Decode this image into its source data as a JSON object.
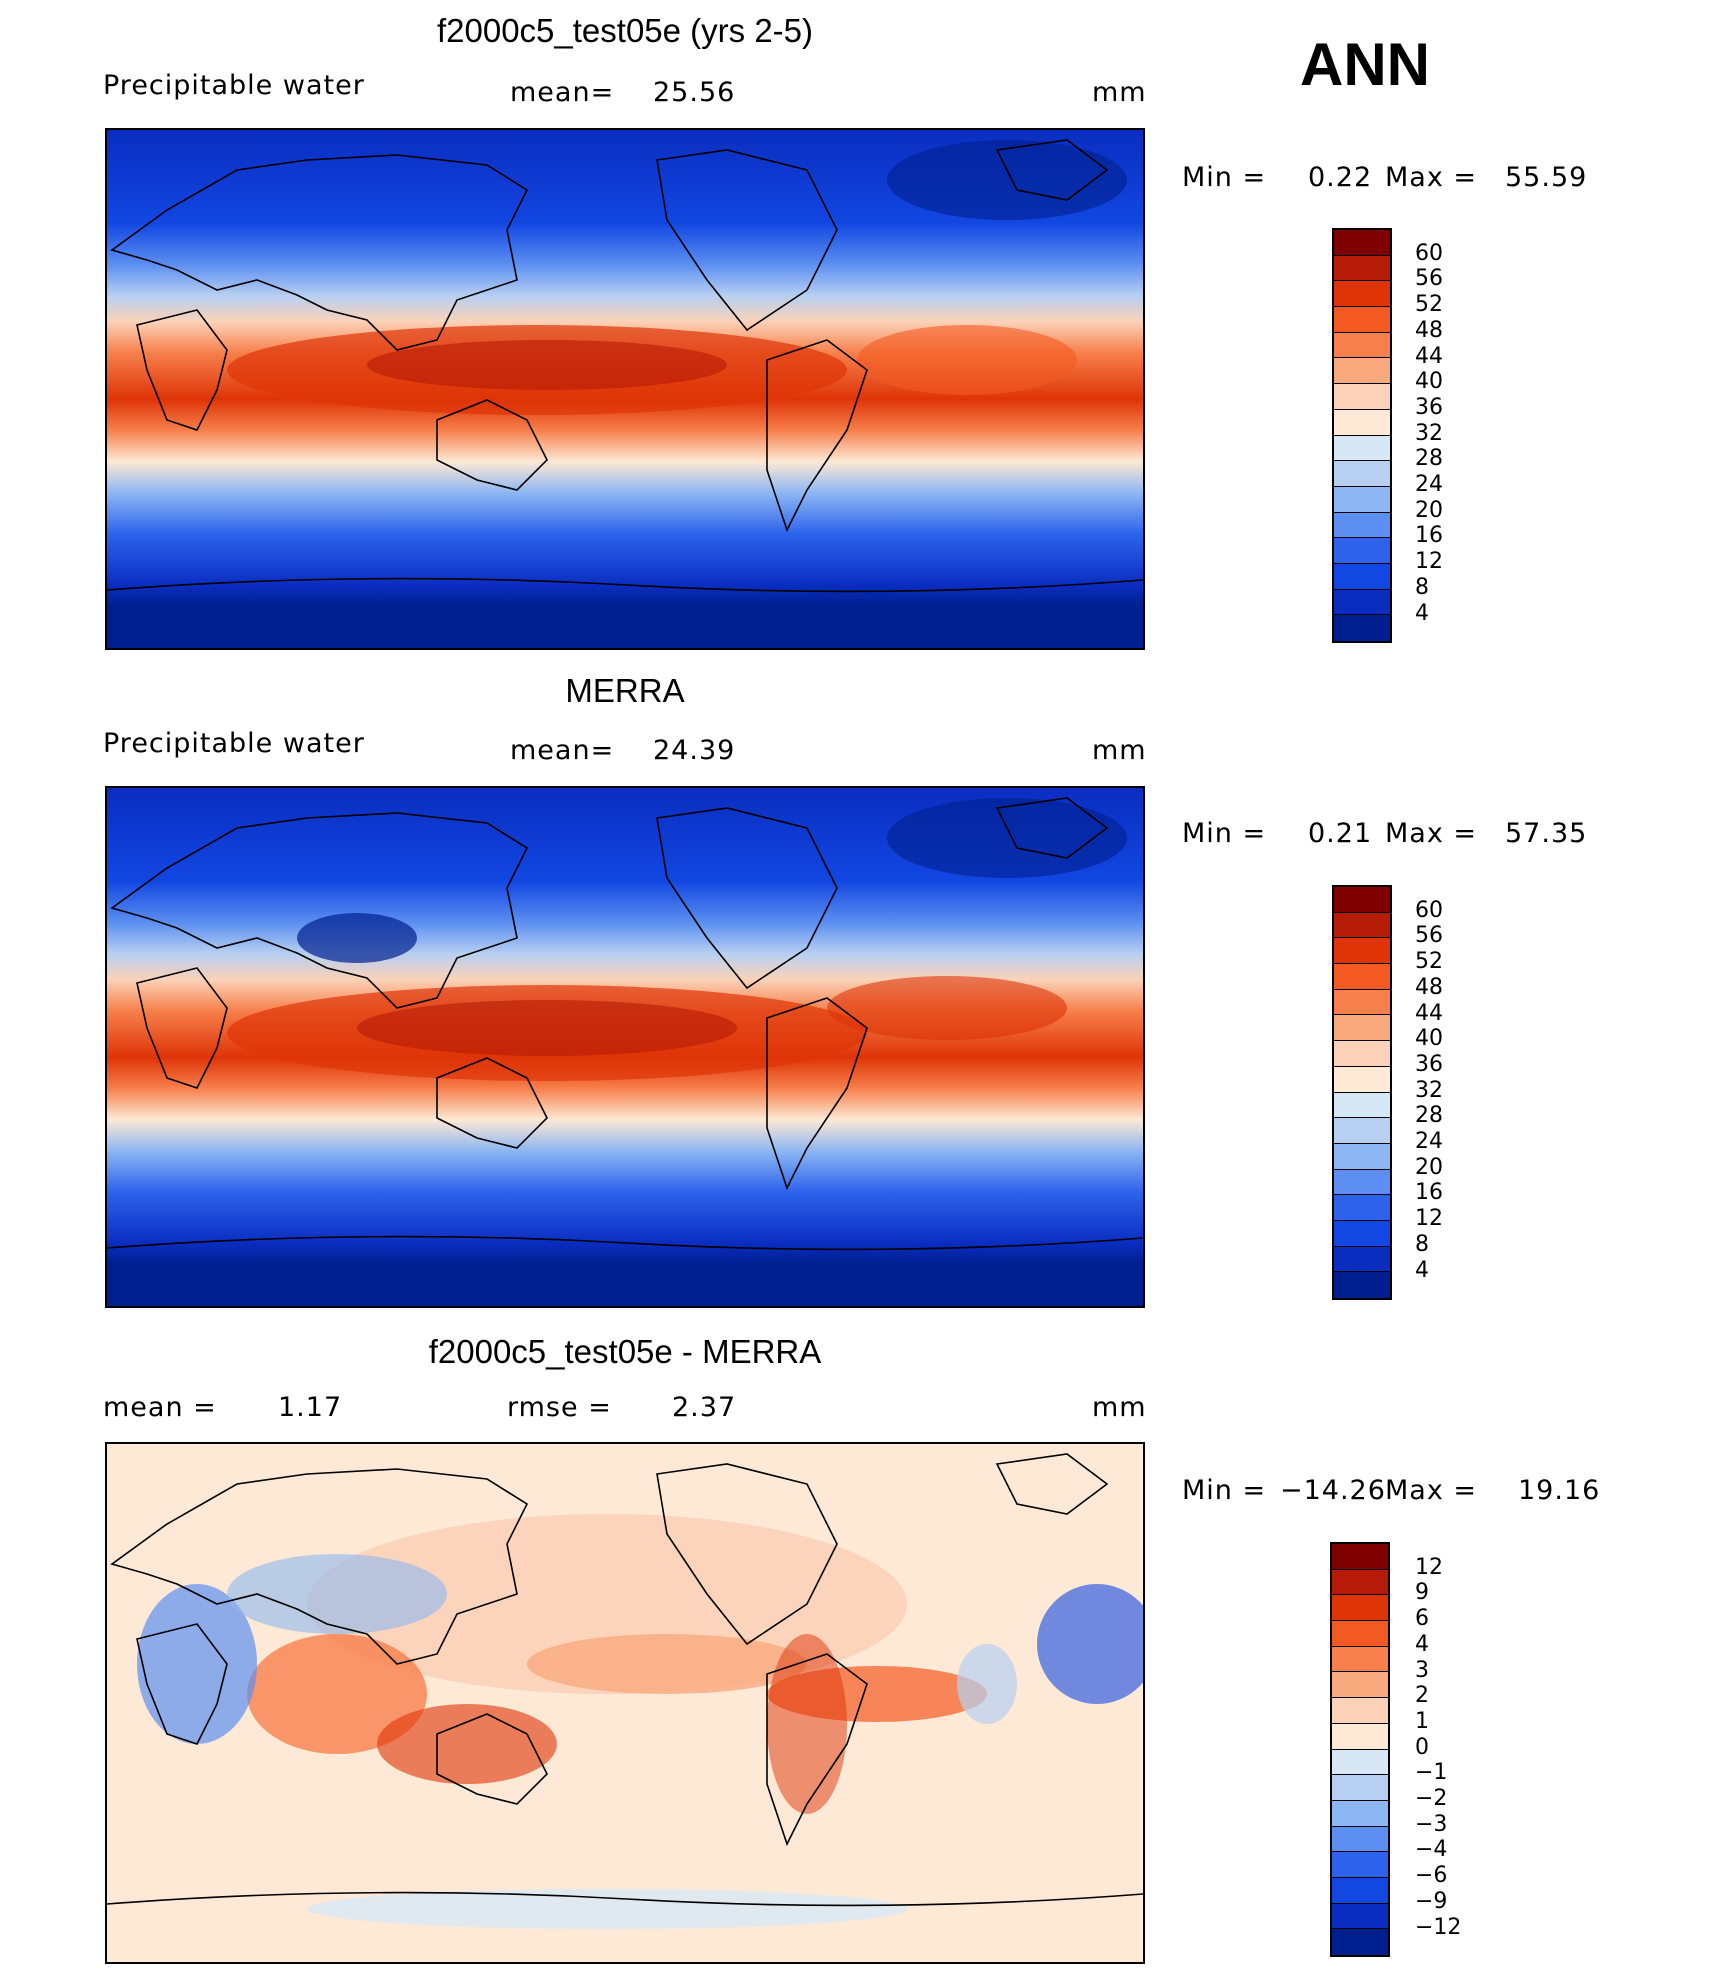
{
  "season": "ANN",
  "panels": [
    {
      "title": "f2000c5_test05e (yrs 2-5)",
      "left_label": "Precipitable  water",
      "center_label": "mean=",
      "center_value": "25.56",
      "units": "mm",
      "minmax": {
        "min_label": "Min  =",
        "min": "0.22",
        "max_label": "Max  =",
        "max": "55.59"
      },
      "colorbar": {
        "colors": [
          "#7f0000",
          "#b51b07",
          "#de3407",
          "#f35a22",
          "#f7804c",
          "#f9a97e",
          "#fbd2b8",
          "#fde9d5",
          "#d8e7f6",
          "#b7d0f2",
          "#8db7f2",
          "#5c8ff1",
          "#2d63ec",
          "#1247e2",
          "#0a2dc0",
          "#001f8e"
        ],
        "ticks": [
          "60",
          "56",
          "52",
          "48",
          "44",
          "40",
          "36",
          "32",
          "28",
          "24",
          "20",
          "16",
          "12",
          "8",
          "4"
        ]
      }
    },
    {
      "title": "MERRA",
      "left_label": "Precipitable  water",
      "center_label": "mean=",
      "center_value": "24.39",
      "units": "mm",
      "minmax": {
        "min_label": "Min  =",
        "min": "0.21",
        "max_label": "Max  =",
        "max": "57.35"
      },
      "colorbar": {
        "colors": [
          "#7f0000",
          "#b51b07",
          "#de3407",
          "#f35a22",
          "#f7804c",
          "#f9a97e",
          "#fbd2b8",
          "#fde9d5",
          "#d8e7f6",
          "#b7d0f2",
          "#8db7f2",
          "#5c8ff1",
          "#2d63ec",
          "#1247e2",
          "#0a2dc0",
          "#001f8e"
        ],
        "ticks": [
          "60",
          "56",
          "52",
          "48",
          "44",
          "40",
          "36",
          "32",
          "28",
          "24",
          "20",
          "16",
          "12",
          "8",
          "4"
        ]
      }
    },
    {
      "title": "f2000c5_test05e - MERRA",
      "left_label": "mean  =",
      "left_value": "1.17",
      "center_label": "rmse  =",
      "center_value": "2.37",
      "units": "mm",
      "minmax": {
        "min_label": "Min  =",
        "min": "−14.26",
        "max_label": "Max  =",
        "max": "19.16"
      },
      "colorbar": {
        "colors": [
          "#7f0000",
          "#b51b07",
          "#de3407",
          "#f35a22",
          "#f7804c",
          "#f9a97e",
          "#fbd2b8",
          "#fde9d5",
          "#d8e7f6",
          "#b7d0f2",
          "#8db7f2",
          "#5c8ff1",
          "#2d63ec",
          "#1247e2",
          "#0a2dc0",
          "#001f8e"
        ],
        "ticks": [
          "12",
          "9",
          "6",
          "4",
          "3",
          "2",
          "1",
          "0",
          "−1",
          "−2",
          "−3",
          "−4",
          "−6",
          "−9",
          "−12"
        ]
      }
    }
  ]
}
